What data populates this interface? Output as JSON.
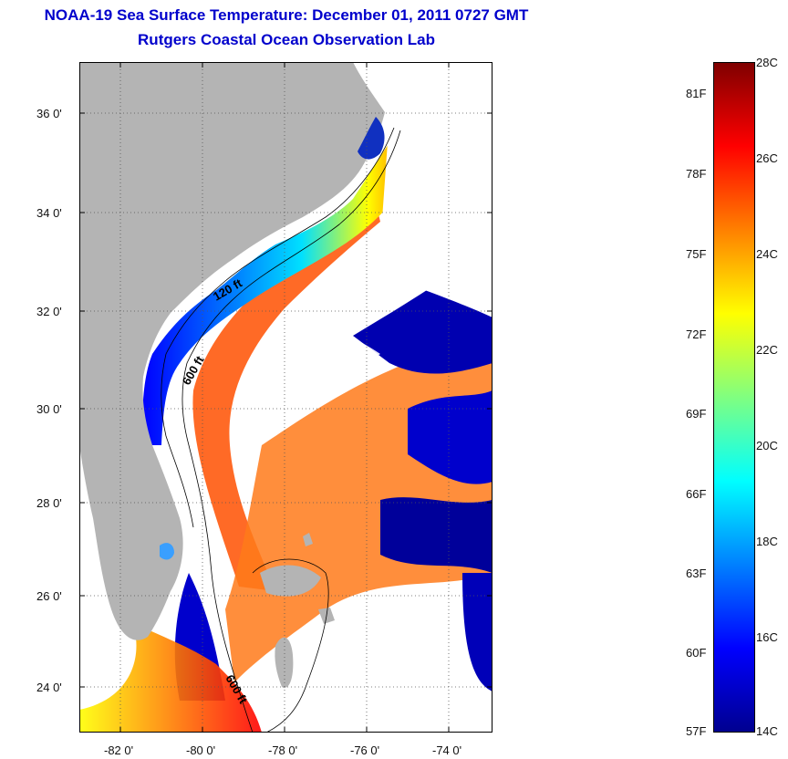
{
  "header": {
    "title": "NOAA-19 Sea Surface Temperature:  December 01, 2011 0727 GMT",
    "subtitle": "Rutgers Coastal Ocean Observation Lab"
  },
  "map": {
    "lat_ticks": [
      "36 0'",
      "34 0'",
      "32 0'",
      "30 0'",
      "28 0'",
      "26 0'",
      "24 0'"
    ],
    "lon_ticks": [
      "-82 0'",
      "-80 0'",
      "-78 0'",
      "-76 0'",
      "-74 0'"
    ],
    "contour_labels": [
      "120 ft",
      "600 ft",
      "600 ft"
    ],
    "land_color": "#b4b4b4",
    "cloud_color": "#ffffff"
  },
  "colorbar": {
    "fahrenheit_labels": [
      "81F",
      "78F",
      "75F",
      "72F",
      "69F",
      "66F",
      "63F",
      "60F",
      "57F"
    ],
    "celsius_labels": [
      "28C",
      "26C",
      "24C",
      "22C",
      "20C",
      "18C",
      "16C",
      "14C"
    ],
    "colors": [
      "#7f0000",
      "#ff0000",
      "#ff8000",
      "#ffff00",
      "#80ff80",
      "#00ffff",
      "#0080ff",
      "#0000ff",
      "#00008f"
    ]
  }
}
